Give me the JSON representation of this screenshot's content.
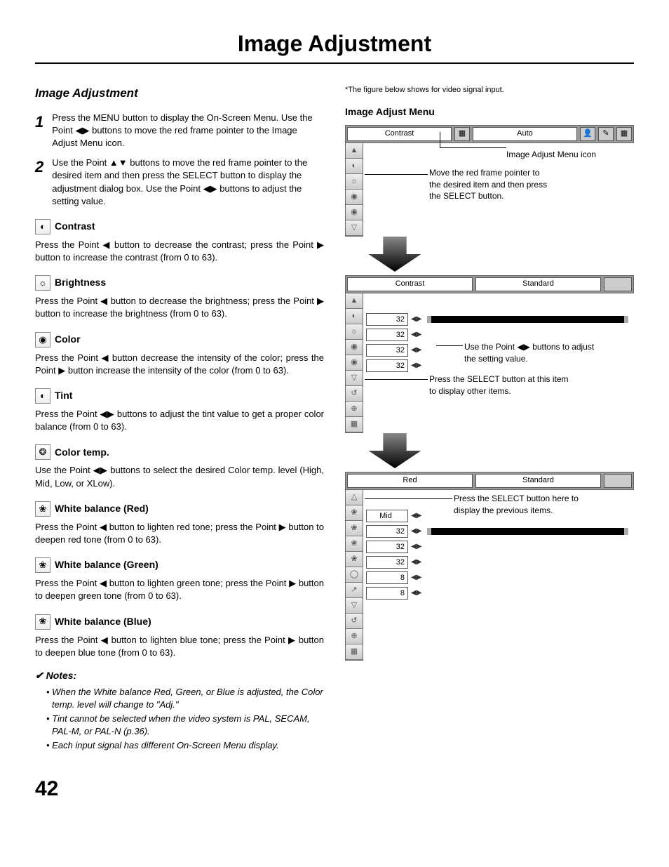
{
  "page": {
    "title": "Image Adjustment",
    "number": "42"
  },
  "section": {
    "title": "Image Adjustment"
  },
  "steps": [
    {
      "num": "1",
      "text": "Press the MENU button to display the On-Screen Menu. Use the Point ◀▶ buttons to move the red frame pointer to the Image Adjust Menu icon."
    },
    {
      "num": "2",
      "text": "Use the Point ▲▼ buttons to move the red frame pointer to the desired item and then press the SELECT button to display the adjustment dialog box. Use the Point ◀▶ buttons to adjust the setting value."
    }
  ],
  "items": [
    {
      "icon": "◐",
      "title": "Contrast",
      "desc": "Press the Point ◀ button to decrease the contrast; press the Point ▶ button to increase the contrast (from 0 to 63)."
    },
    {
      "icon": "☼",
      "title": "Brightness",
      "desc": "Press the Point ◀ button to decrease the brightness; press the Point ▶ button to increase the brightness (from 0 to 63)."
    },
    {
      "icon": "◉",
      "title": "Color",
      "desc": "Press the Point ◀ button decrease the intensity of the color; press the Point ▶ button increase the intensity of the color (from 0 to 63)."
    },
    {
      "icon": "◐",
      "title": "Tint",
      "desc": "Press the Point ◀▶ buttons to adjust the tint value to get a proper color balance (from 0 to 63)."
    },
    {
      "icon": "❂",
      "title": "Color temp.",
      "desc": "Use the Point ◀▶ buttons to select the desired Color temp. level (High, Mid, Low, or XLow)."
    },
    {
      "icon": "❀",
      "title": "White balance (Red)",
      "desc": "Press the Point ◀ button to lighten red tone; press the Point ▶ button to deepen red tone (from 0 to 63)."
    },
    {
      "icon": "❀",
      "title": "White balance (Green)",
      "desc": "Press the Point ◀ button to lighten green tone; press the Point ▶ button to deepen green tone (from 0 to 63)."
    },
    {
      "icon": "❀",
      "title": "White balance (Blue)",
      "desc": "Press the Point ◀ button to lighten blue tone; press the Point ▶ button to deepen blue tone (from 0 to 63)."
    }
  ],
  "notes": {
    "heading": "✔ Notes:",
    "list": [
      "• When the White balance Red, Green, or Blue is adjusted, the Color temp. level will change to \"Adj.\"",
      "• Tint cannot be selected when the video system is PAL, SECAM, PAL-M, or PAL-N (p.36).",
      "• Each input signal has different On-Screen Menu display."
    ]
  },
  "right": {
    "caption": "*The figure below shows for video signal input.",
    "heading": "Image Adjust Menu",
    "callouts": {
      "menu_icon": "Image Adjust Menu icon",
      "move_frame": "Move the red frame pointer to the desired item and then press the SELECT button.",
      "adjust": "Use the Point ◀▶ buttons to adjust the setting value.",
      "select_other": "Press the SELECT button at this item to display other items.",
      "select_prev": "Press the SELECT button here to display the previous items."
    },
    "panel1": {
      "tab1": "Contrast",
      "tab2": "Auto",
      "side_icons": [
        "▲",
        "◐",
        "☼",
        "◉",
        "◉",
        "▽"
      ]
    },
    "panel2": {
      "tab1": "Contrast",
      "tab2": "Standard",
      "side_icons": [
        "▲",
        "◐",
        "☼",
        "◉",
        "◉",
        "▽",
        "↺",
        "⊕",
        "▦"
      ],
      "values": [
        "32",
        "32",
        "32",
        "32"
      ]
    },
    "panel3": {
      "tab1": "Red",
      "tab2": "Standard",
      "side_icons": [
        "△",
        "❀",
        "❀",
        "❀",
        "❀",
        "◯",
        "↗",
        "▽",
        "↺",
        "⊕",
        "▦"
      ],
      "values": [
        "Mid",
        "32",
        "32",
        "32",
        "8",
        "8"
      ]
    }
  }
}
